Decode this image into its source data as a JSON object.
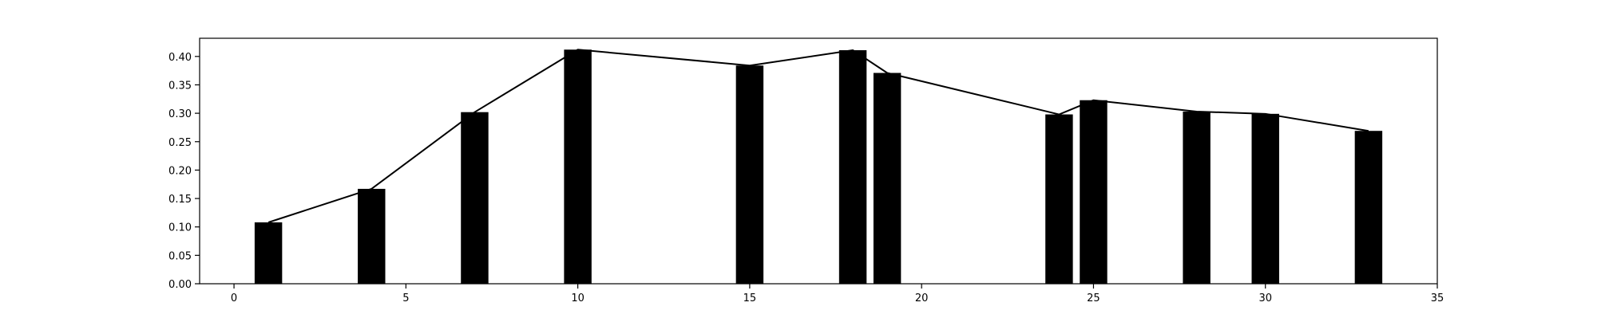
{
  "chart_data": {
    "type": "bar",
    "title": "",
    "xlabel": "",
    "ylabel": "",
    "xlim": [
      -1,
      35
    ],
    "ylim": [
      0,
      0.432
    ],
    "grid": false,
    "bar_width": 0.8,
    "x_ticks": [
      0,
      5,
      10,
      15,
      20,
      25,
      30,
      35
    ],
    "x_tick_labels": [
      "0",
      "5",
      "10",
      "15",
      "20",
      "25",
      "30",
      "35"
    ],
    "y_ticks": [
      0.0,
      0.05,
      0.1,
      0.15,
      0.2,
      0.25,
      0.3,
      0.35,
      0.4
    ],
    "y_tick_labels": [
      "0.00",
      "0.05",
      "0.10",
      "0.15",
      "0.20",
      "0.25",
      "0.30",
      "0.35",
      "0.40"
    ],
    "x": [
      1,
      4,
      7,
      10,
      15,
      18,
      19,
      24,
      25,
      28,
      30,
      33
    ],
    "values": [
      0.108,
      0.167,
      0.302,
      0.412,
      0.384,
      0.411,
      0.371,
      0.298,
      0.323,
      0.303,
      0.299,
      0.269
    ],
    "line_values": [
      0.108,
      0.167,
      0.302,
      0.412,
      0.384,
      0.411,
      0.371,
      0.298,
      0.323,
      0.303,
      0.299,
      0.269
    ],
    "bar_color": "#000000",
    "line_color": "#000000"
  }
}
